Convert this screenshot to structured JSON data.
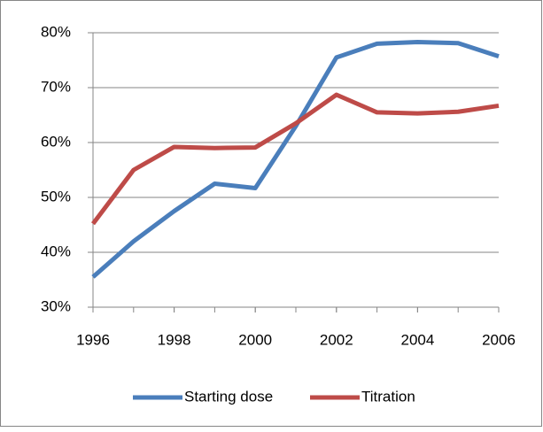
{
  "chart_data": {
    "type": "line",
    "x": [
      1996,
      1997,
      1998,
      1999,
      2000,
      2001,
      2002,
      2003,
      2004,
      2005,
      2006
    ],
    "series": [
      {
        "name": "Starting dose",
        "color": "#4a7ebb",
        "values": [
          35.5,
          42,
          47.5,
          52.5,
          51.7,
          63,
          75.5,
          78,
          78.3,
          78.1,
          75.7
        ]
      },
      {
        "name": "Titration",
        "color": "#be4b48",
        "values": [
          45.2,
          55,
          59.2,
          59,
          59.1,
          63.5,
          68.7,
          65.5,
          65.3,
          65.6,
          66.7
        ]
      }
    ],
    "xlim": [
      1996,
      2006
    ],
    "xticks": [
      1996,
      1998,
      2000,
      2002,
      2004,
      2006
    ],
    "ylim": [
      30,
      80
    ],
    "yticks": [
      {
        "value": 30,
        "label": "30%"
      },
      {
        "value": 40,
        "label": "40%"
      },
      {
        "value": 50,
        "label": "50%"
      },
      {
        "value": 60,
        "label": "60%"
      },
      {
        "value": 70,
        "label": "70%"
      },
      {
        "value": 80,
        "label": "80%"
      }
    ],
    "grid": true,
    "legend": "bottom"
  }
}
